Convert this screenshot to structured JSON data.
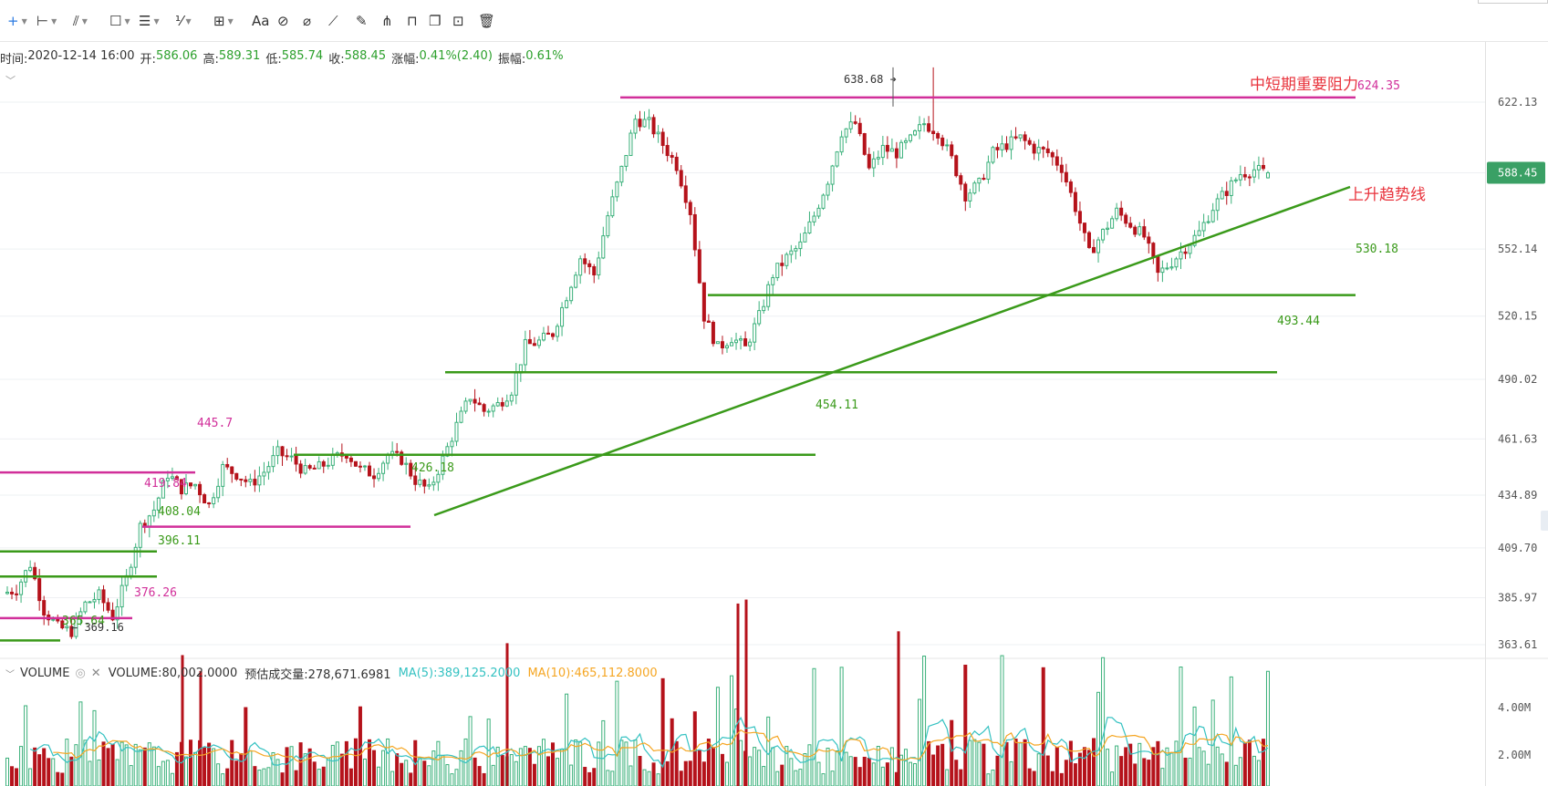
{
  "toolbar": {
    "tools": [
      {
        "name": "crosshair-tool",
        "glyph": "+",
        "dropdown": true
      },
      {
        "name": "horizontal-line-tool",
        "glyph": "⊢",
        "dropdown": true
      },
      {
        "name": "trend-line-tool",
        "glyph": "⫽",
        "dropdown": true
      },
      {
        "name": "rectangle-tool",
        "glyph": "☐",
        "dropdown": true
      },
      {
        "name": "channel-tool",
        "glyph": "☰",
        "dropdown": true
      },
      {
        "name": "fibonacci-tool",
        "glyph": "⅟",
        "dropdown": true
      },
      {
        "name": "measure-tool",
        "glyph": "⊞",
        "dropdown": true
      },
      {
        "name": "text-tool",
        "glyph": "Aa",
        "dropdown": false
      },
      {
        "name": "pattern-tool",
        "glyph": "⊘",
        "dropdown": false
      },
      {
        "name": "eraser-tool",
        "glyph": "⌀",
        "dropdown": false
      },
      {
        "name": "ruler-tool",
        "glyph": "⟋",
        "dropdown": false
      },
      {
        "name": "brush-tool",
        "glyph": "✎",
        "dropdown": false
      },
      {
        "name": "magnet-tool",
        "glyph": "⋔",
        "dropdown": false
      },
      {
        "name": "lock-tool",
        "glyph": "⊓",
        "dropdown": false
      },
      {
        "name": "copy-tool",
        "glyph": "❐",
        "dropdown": false
      },
      {
        "name": "screenshot-tool",
        "glyph": "⊡",
        "dropdown": false
      },
      {
        "name": "delete-tool",
        "glyph": "🗑",
        "dropdown": false
      }
    ]
  },
  "info": {
    "time_label": "时间:",
    "time": "2020-12-14 16:00",
    "open_label": "开:",
    "open": "586.06",
    "high_label": "高:",
    "high": "589.31",
    "low_label": "低:",
    "low": "585.74",
    "close_label": "收:",
    "close": "588.45",
    "change_label": "涨幅:",
    "change": "0.41%(2.40)",
    "amp_label": "振幅:",
    "amp": "0.61%"
  },
  "volume_bar": {
    "title": "VOLUME",
    "volume_text": "VOLUME:80,002.0000",
    "estimate_text": "预估成交量:278,671.6981",
    "ma5_text": "MA(5):389,125.2000",
    "ma10_text": "MA(10):465,112.8000"
  },
  "colors": {
    "up": "#3ab07a",
    "down": "#b5121b",
    "support": "#3a9a1a",
    "resistance": "#d12f9a",
    "annotation_red": "#e8333c",
    "price_tag": "#3aa065",
    "ma5": "#35c2c2",
    "ma10": "#f5a623"
  },
  "price_axis": [
    "622.13",
    "588.45",
    "552.14",
    "520.15",
    "490.02",
    "461.63",
    "434.89",
    "409.70",
    "385.97",
    "363.61"
  ],
  "current_price": "588.45",
  "volume_axis": [
    "4.00M",
    "2.00M"
  ],
  "chart_data": {
    "type": "candlestick",
    "date": "2020-12-14 16:00",
    "ylim": [
      355,
      640
    ],
    "horizontal_levels": [
      {
        "label": "624.35",
        "kind": "resistance",
        "note": "中短期重要阻力"
      },
      {
        "label": "530.18",
        "kind": "support"
      },
      {
        "label": "493.44",
        "kind": "support"
      },
      {
        "label": "454.11",
        "kind": "support"
      },
      {
        "label": "445.7",
        "kind": "resistance"
      },
      {
        "label": "419.84",
        "kind": "resistance"
      },
      {
        "label": "408.04",
        "kind": "support"
      },
      {
        "label": "396.11",
        "kind": "support"
      },
      {
        "label": "376.26",
        "kind": "resistance"
      },
      {
        "label": "365.64",
        "kind": "support"
      }
    ],
    "extremes": [
      {
        "label": "638.68",
        "kind": "high"
      },
      {
        "label": "369.16",
        "kind": "low"
      }
    ],
    "pivot_labels": [
      "426.18"
    ],
    "trendline": {
      "label": "上升趋势线",
      "from": 426.18,
      "to": 575
    },
    "price_path": [
      388,
      390,
      402,
      380,
      372,
      370,
      383,
      387,
      377,
      395,
      420,
      428,
      445,
      438,
      440,
      430,
      448,
      445,
      440,
      446,
      455,
      452,
      446,
      448,
      452,
      455,
      447,
      445,
      454,
      452,
      442,
      437,
      452,
      468,
      482,
      475,
      478,
      485,
      506,
      508,
      512,
      530,
      548,
      540,
      568,
      590,
      614,
      612,
      602,
      592,
      570,
      520,
      505,
      510,
      505,
      520,
      540,
      548,
      554,
      568,
      585,
      608,
      612,
      590,
      600,
      598,
      604,
      612,
      608,
      595,
      578,
      583,
      598,
      602,
      605,
      600,
      598,
      591,
      572,
      550,
      560,
      570,
      564,
      558,
      540,
      546,
      553,
      560,
      572,
      580,
      588,
      590,
      588
    ]
  }
}
